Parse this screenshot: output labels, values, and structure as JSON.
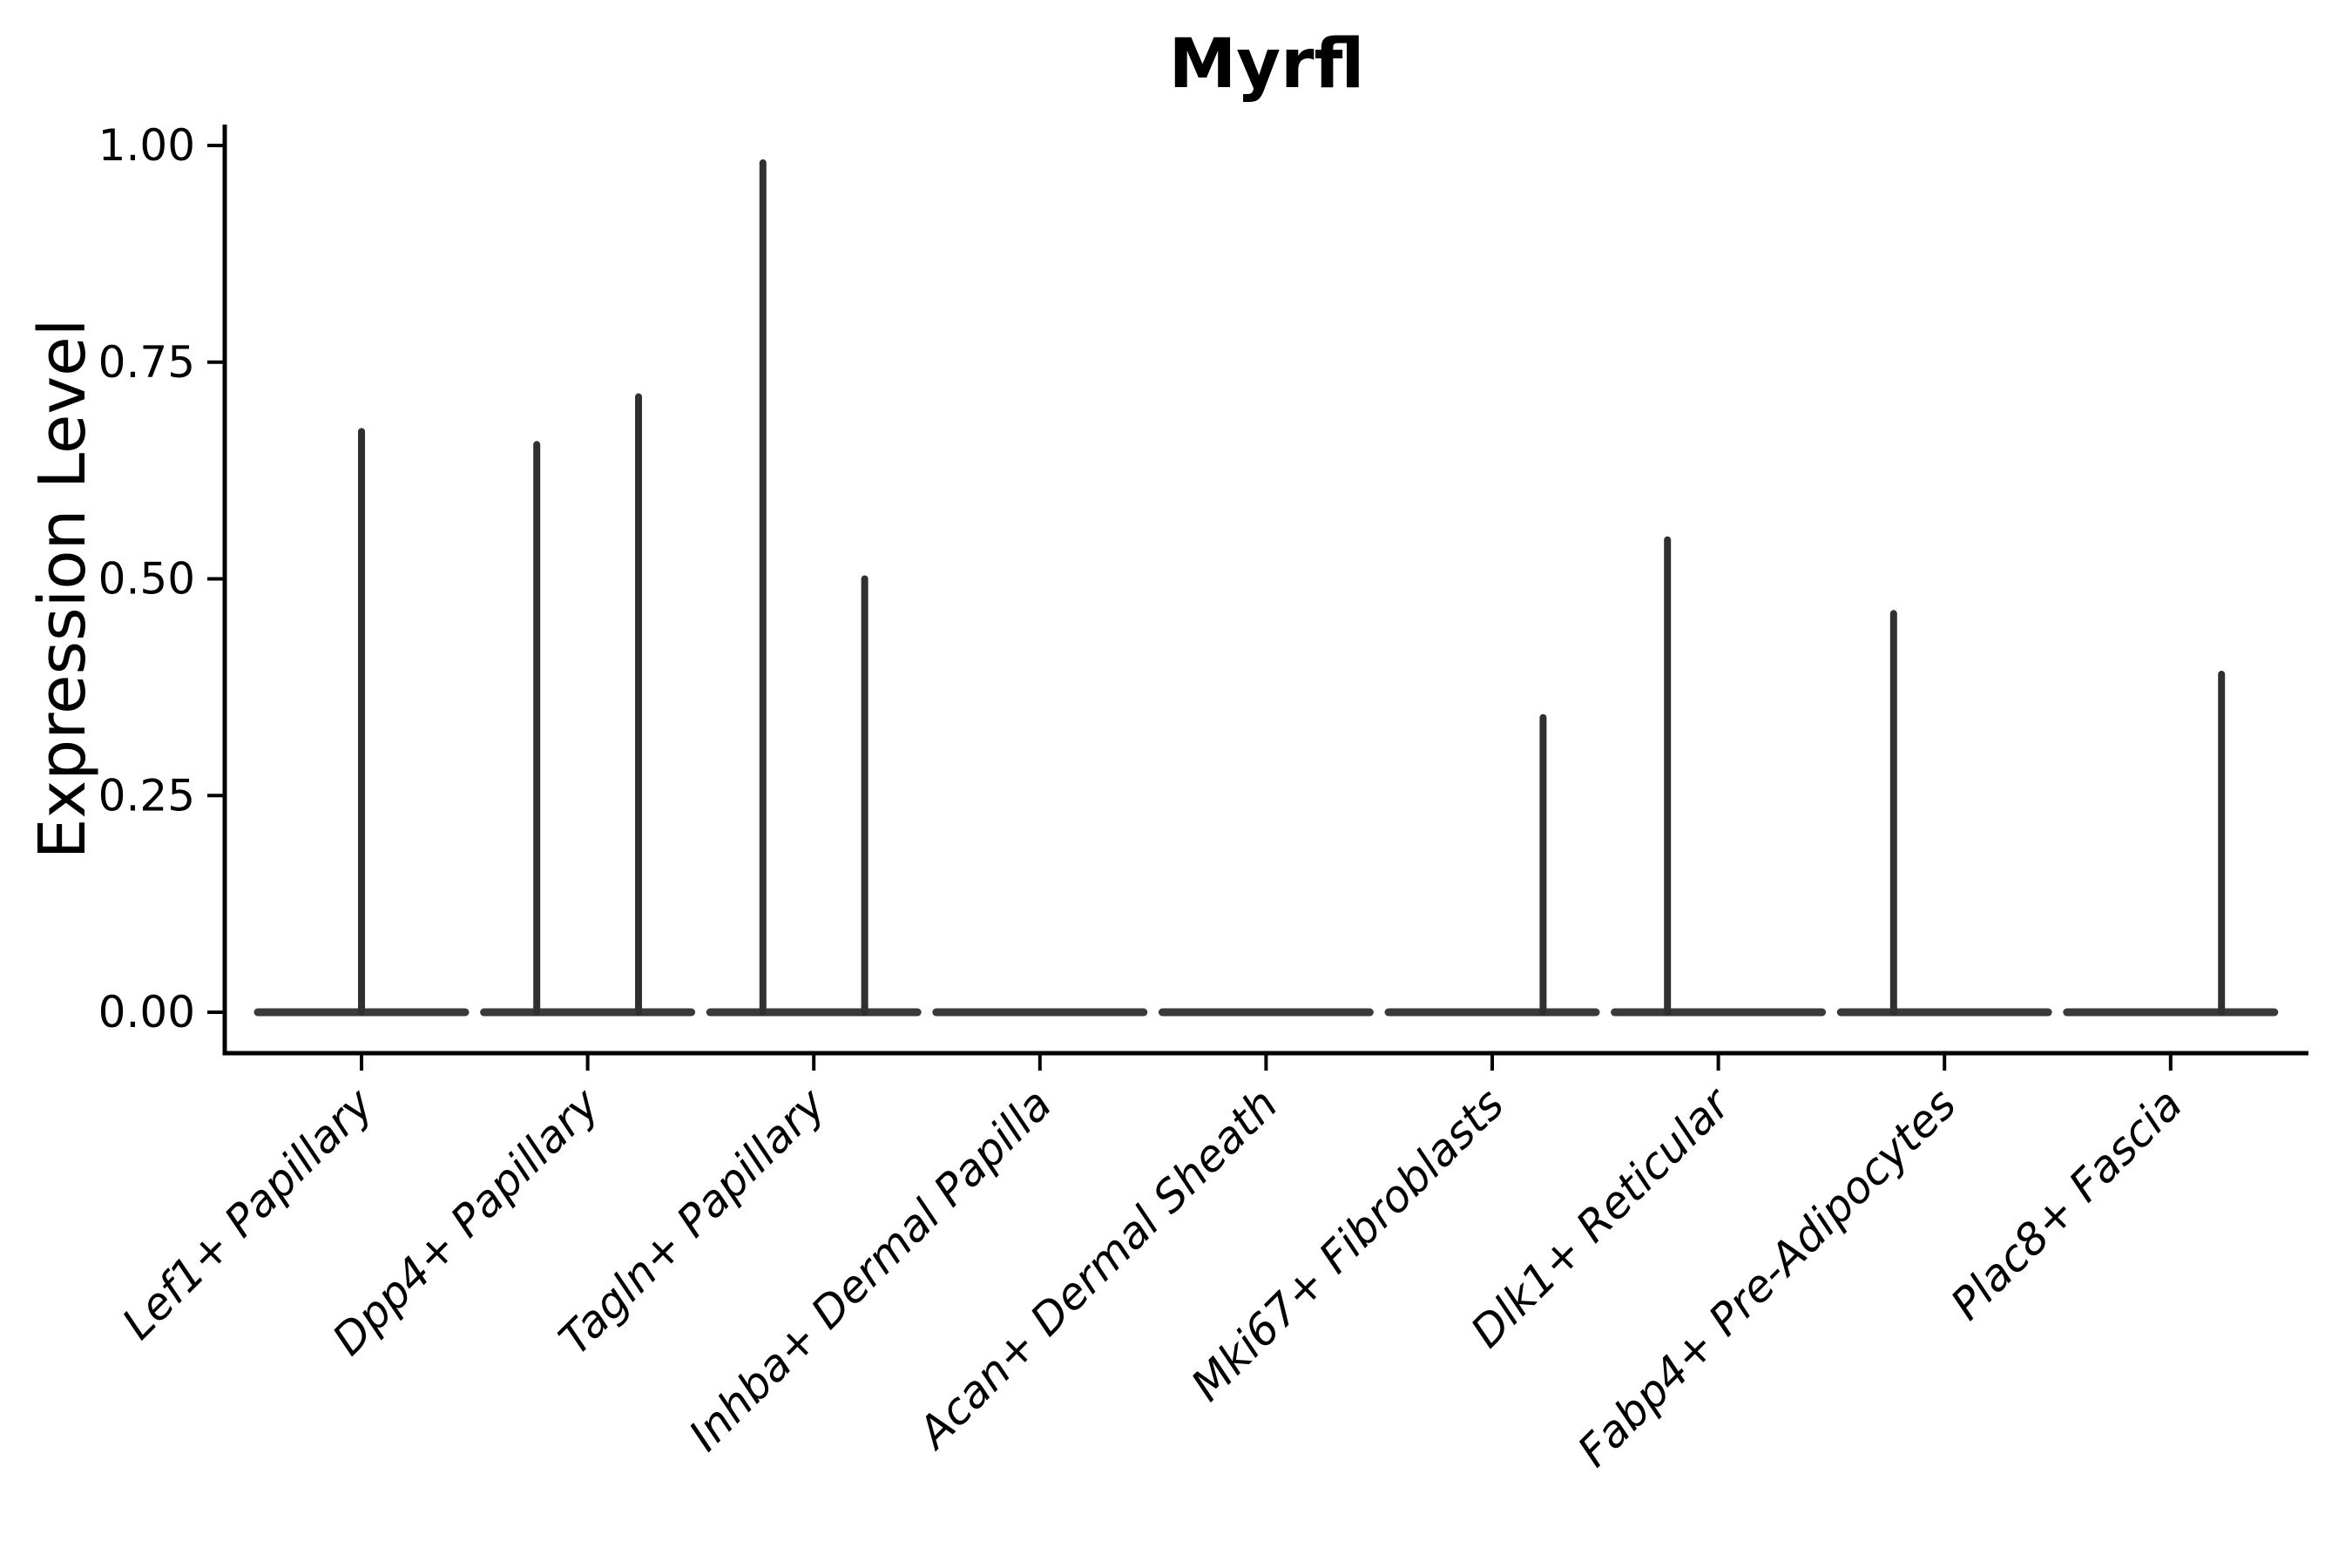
{
  "chart_data": {
    "type": "violin",
    "title": "Myrfl",
    "ylabel": "Expression Level",
    "xlabel": "",
    "ylim": [
      0.0,
      1.0
    ],
    "grid": false,
    "legend": false,
    "yticks": [
      {
        "value": 0.0,
        "label": "0.00"
      },
      {
        "value": 0.25,
        "label": "0.25"
      },
      {
        "value": 0.5,
        "label": "0.50"
      },
      {
        "value": 0.75,
        "label": "0.75"
      },
      {
        "value": 1.0,
        "label": "1.00"
      }
    ],
    "categories": [
      "Lef1+ Papillary",
      "Dpp4+ Papillary",
      "Tagln+ Papillary",
      "Inhba+ Dermal Papilla",
      "Acan+ Dermal Sheath",
      "Mki67+ Fibroblasts",
      "Dlk1+ Reticular",
      "Fabp4+ Pre-Adipocytes",
      "Plac8+ Fascia"
    ],
    "violins": [
      {
        "category": "Lef1+ Papillary",
        "baseline_value": 0.0,
        "spikes": [
          {
            "offset_frac": 0.0,
            "value": 0.67
          }
        ]
      },
      {
        "category": "Dpp4+ Papillary",
        "baseline_value": 0.0,
        "spikes": [
          {
            "offset_frac": -0.225,
            "value": 0.655
          },
          {
            "offset_frac": 0.225,
            "value": 0.71
          }
        ]
      },
      {
        "category": "Tagln+ Papillary",
        "baseline_value": 0.0,
        "spikes": [
          {
            "offset_frac": -0.225,
            "value": 0.98
          },
          {
            "offset_frac": 0.225,
            "value": 0.5
          }
        ]
      },
      {
        "category": "Inhba+ Dermal Papilla",
        "baseline_value": 0.0,
        "spikes": []
      },
      {
        "category": "Acan+ Dermal Sheath",
        "baseline_value": 0.0,
        "spikes": []
      },
      {
        "category": "Mki67+ Fibroblasts",
        "baseline_value": 0.0,
        "spikes": [
          {
            "offset_frac": 0.225,
            "value": 0.34
          }
        ]
      },
      {
        "category": "Dlk1+ Reticular",
        "baseline_value": 0.0,
        "spikes": [
          {
            "offset_frac": -0.225,
            "value": 0.545
          }
        ]
      },
      {
        "category": "Fabp4+ Pre-Adipocytes",
        "baseline_value": 0.0,
        "spikes": [
          {
            "offset_frac": -0.225,
            "value": 0.46
          }
        ]
      },
      {
        "category": "Plac8+ Fascia",
        "baseline_value": 0.0,
        "spikes": [
          {
            "offset_frac": 0.225,
            "value": 0.39
          }
        ]
      }
    ],
    "style": {
      "violin_fill": "#3a3a3a",
      "spike_color": "#303030",
      "axis_color": "#000000",
      "text_color": "#000000",
      "background": "#ffffff"
    }
  }
}
